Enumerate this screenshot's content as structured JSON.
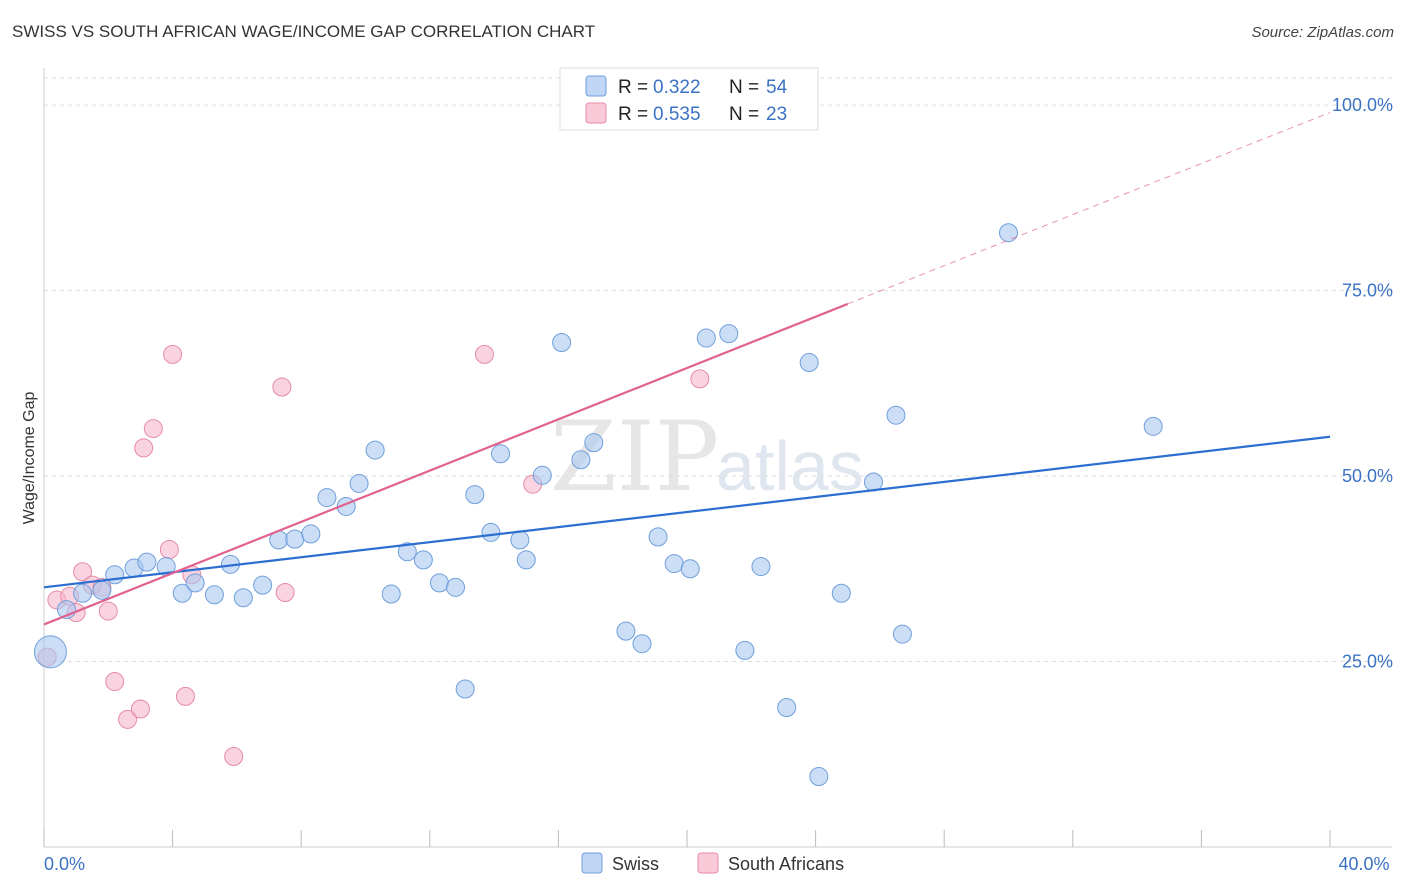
{
  "header": {
    "title": "SWISS VS SOUTH AFRICAN WAGE/INCOME GAP CORRELATION CHART",
    "source": "Source: ZipAtlas.com"
  },
  "watermark": {
    "zip": "ZIP",
    "atlas": "atlas"
  },
  "legend": {
    "rows": [
      {
        "r_label": "R =",
        "r_value": "0.322",
        "n_label": "N =",
        "n_value": "54",
        "color": "#a9c8f0"
      },
      {
        "r_label": "R =",
        "r_value": "0.535",
        "n_label": "N =",
        "n_value": "23",
        "color": "#f5b8cb"
      }
    ]
  },
  "bottom_legend": {
    "swiss": "Swiss",
    "south_africans": "South Africans"
  },
  "colors": {
    "swiss_fill": "#a9c8f0",
    "swiss_stroke": "#6f9fdc",
    "swiss_line": "#2d6fd0",
    "sa_fill": "#f5b8cb",
    "sa_stroke": "#e68aa8",
    "sa_line": "#e0628f",
    "tick_label": "#3b72c4",
    "grid": "#dddddd"
  },
  "chart_data": {
    "type": "scatter",
    "title": "SWISS VS SOUTH AFRICAN WAGE/INCOME GAP CORRELATION CHART",
    "xlabel": "",
    "ylabel": "Wage/Income Gap",
    "xlim": [
      0,
      40
    ],
    "ylim": [
      0,
      105
    ],
    "x_tick_labels": [
      {
        "value": 0,
        "label": "0.0%"
      },
      {
        "value": 40,
        "label": "40.0%"
      }
    ],
    "y_tick_labels": [
      {
        "value": 25,
        "label": "25.0%"
      },
      {
        "value": 50,
        "label": "50.0%"
      },
      {
        "value": 75,
        "label": "75.0%"
      },
      {
        "value": 100,
        "label": "100.0%"
      }
    ],
    "series": [
      {
        "name": "Swiss",
        "R": 0.322,
        "N": 54,
        "points": [
          [
            0.2,
            26.3,
            16
          ],
          [
            0.7,
            32.0,
            9
          ],
          [
            1.2,
            34.2,
            9
          ],
          [
            1.8,
            34.6,
            9
          ],
          [
            2.2,
            36.7,
            9
          ],
          [
            2.8,
            37.6,
            9
          ],
          [
            3.2,
            38.4,
            9
          ],
          [
            3.8,
            37.8,
            9
          ],
          [
            4.3,
            34.2,
            9
          ],
          [
            4.7,
            35.6,
            9
          ],
          [
            5.3,
            34.0,
            9
          ],
          [
            5.8,
            38.1,
            9
          ],
          [
            6.2,
            33.6,
            9
          ],
          [
            6.8,
            35.3,
            9
          ],
          [
            7.3,
            41.4,
            9
          ],
          [
            7.8,
            41.5,
            9
          ],
          [
            8.3,
            42.2,
            9
          ],
          [
            8.8,
            47.1,
            9
          ],
          [
            9.4,
            45.9,
            9
          ],
          [
            9.8,
            49.0,
            9
          ],
          [
            10.3,
            53.5,
            9
          ],
          [
            10.8,
            34.1,
            9
          ],
          [
            11.3,
            39.8,
            9
          ],
          [
            11.8,
            38.7,
            9
          ],
          [
            12.3,
            35.6,
            9
          ],
          [
            12.8,
            35.0,
            9
          ],
          [
            13.1,
            21.3,
            9
          ],
          [
            13.4,
            47.5,
            9
          ],
          [
            13.9,
            42.4,
            9
          ],
          [
            14.2,
            53.0,
            9
          ],
          [
            14.8,
            41.4,
            9
          ],
          [
            15.0,
            38.7,
            9
          ],
          [
            15.5,
            50.1,
            9
          ],
          [
            16.1,
            68.0,
            9
          ],
          [
            16.7,
            52.2,
            9
          ],
          [
            17.1,
            54.5,
            9
          ],
          [
            18.1,
            29.1,
            9
          ],
          [
            18.6,
            27.4,
            9
          ],
          [
            19.1,
            41.8,
            9
          ],
          [
            19.6,
            38.2,
            9
          ],
          [
            20.1,
            37.5,
            9
          ],
          [
            20.6,
            68.6,
            9
          ],
          [
            21.3,
            69.2,
            9
          ],
          [
            21.8,
            26.5,
            9
          ],
          [
            22.3,
            37.8,
            9
          ],
          [
            23.1,
            18.8,
            9
          ],
          [
            23.8,
            65.3,
            9
          ],
          [
            24.1,
            9.5,
            9
          ],
          [
            24.8,
            34.2,
            9
          ],
          [
            25.8,
            49.2,
            9
          ],
          [
            26.5,
            58.2,
            9
          ],
          [
            26.7,
            28.7,
            9
          ],
          [
            30.0,
            82.8,
            9
          ],
          [
            34.5,
            56.7,
            9
          ]
        ],
        "trend": {
          "x": [
            0,
            40
          ],
          "y": [
            35.0,
            55.3
          ],
          "style": "solid"
        }
      },
      {
        "name": "South Africans",
        "R": 0.535,
        "N": 23,
        "points": [
          [
            0.1,
            25.6,
            9
          ],
          [
            0.4,
            33.3,
            9
          ],
          [
            0.8,
            33.8,
            9
          ],
          [
            1.0,
            31.6,
            9
          ],
          [
            1.2,
            37.1,
            9
          ],
          [
            1.5,
            35.3,
            9
          ],
          [
            1.8,
            35.0,
            9
          ],
          [
            2.0,
            31.8,
            9
          ],
          [
            2.2,
            22.3,
            9
          ],
          [
            2.6,
            17.2,
            9
          ],
          [
            3.0,
            18.6,
            9
          ],
          [
            3.1,
            53.8,
            9
          ],
          [
            3.4,
            56.4,
            9
          ],
          [
            3.9,
            40.1,
            9
          ],
          [
            4.0,
            66.4,
            9
          ],
          [
            4.4,
            20.3,
            9
          ],
          [
            4.6,
            36.7,
            9
          ],
          [
            5.9,
            12.2,
            9
          ],
          [
            7.4,
            62.0,
            9
          ],
          [
            7.5,
            34.3,
            9
          ],
          [
            13.7,
            66.4,
            9
          ],
          [
            15.2,
            48.9,
            9
          ],
          [
            20.4,
            63.1,
            9
          ]
        ],
        "trend": {
          "x": [
            0,
            25
          ],
          "y": [
            30.0,
            73.2
          ],
          "style": "solid",
          "extension": {
            "x": [
              25,
              40
            ],
            "y": [
              73.2,
              99.0
            ],
            "style": "dashed"
          }
        }
      }
    ]
  }
}
